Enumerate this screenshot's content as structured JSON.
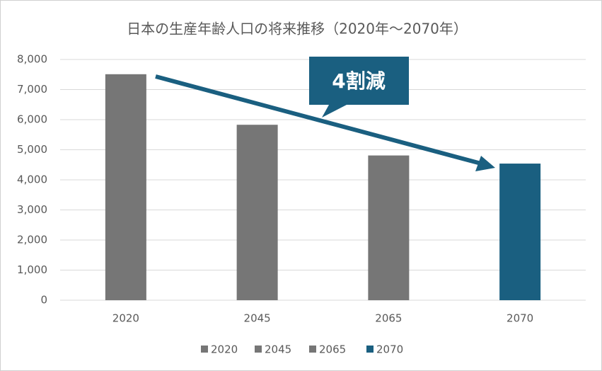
{
  "chart_data": {
    "type": "bar",
    "title": "日本の生産年齢人口の将来推移（2020年～2070年）",
    "categories": [
      "2020",
      "2045",
      "2065",
      "2070"
    ],
    "values": [
      7510,
      5830,
      4810,
      4540
    ],
    "colors": [
      "#767676",
      "#767676",
      "#767676",
      "#1a5f80"
    ],
    "ylim": [
      0,
      8000
    ],
    "yticks": [
      0,
      {
        "value": 1000,
        "label": "1,000"
      },
      {
        "value": 2000,
        "label": "2,000"
      },
      {
        "value": 3000,
        "label": "3,000"
      },
      {
        "value": 4000,
        "label": "4,000"
      },
      {
        "value": 5000,
        "label": "5,000"
      },
      {
        "value": 6000,
        "label": "6,000"
      },
      {
        "value": 7000,
        "label": "7,000"
      },
      {
        "value": 8000,
        "label": "8,000"
      }
    ],
    "grid": true,
    "legend": "bottom",
    "annotation": "4割減"
  }
}
